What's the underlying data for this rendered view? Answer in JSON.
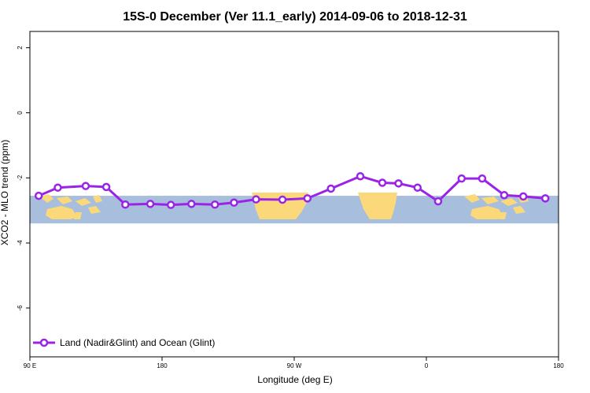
{
  "chart_data": {
    "type": "line",
    "title": "15S-0 December (Ver 11.1_early)   2014-09-06 to 2018-12-31",
    "xlabel": "Longitude (deg E)",
    "ylabel": "XCO2 - MLO trend (ppm)",
    "xlim": [
      90,
      450
    ],
    "ylim": [
      -7.5,
      2.5
    ],
    "x_ticks": [
      {
        "value": 90,
        "label": "90 E"
      },
      {
        "value": 180,
        "label": "180"
      },
      {
        "value": 270,
        "label": "90 W"
      },
      {
        "value": 360,
        "label": "0"
      },
      {
        "value": 450,
        "label": "180"
      }
    ],
    "y_ticks": [
      {
        "value": 2,
        "label": "2"
      },
      {
        "value": 0,
        "label": "0"
      },
      {
        "value": -2,
        "label": "-2"
      },
      {
        "value": -4,
        "label": "-4"
      },
      {
        "value": -6,
        "label": "-6"
      }
    ],
    "band": {
      "ymin": -3.4,
      "ymax": -2.55,
      "ocean_color": "#a8bedd",
      "land_color": "#fbd97a"
    },
    "series": [
      {
        "name": "Land (Nadir&Glint) and Ocean (Glint)",
        "color": "#9a24e6",
        "x": [
          96,
          109,
          128,
          142,
          155,
          172,
          186,
          200,
          216,
          229,
          244,
          262,
          279,
          295,
          315,
          330,
          341,
          354,
          368,
          384,
          398,
          413,
          426,
          441
        ],
        "values": [
          -2.55,
          -2.3,
          -2.25,
          -2.28,
          -2.82,
          -2.8,
          -2.83,
          -2.8,
          -2.82,
          -2.76,
          -2.66,
          -2.67,
          -2.63,
          -2.33,
          -1.95,
          -2.15,
          -2.17,
          -2.3,
          -2.72,
          -2.02,
          -2.02,
          -2.53,
          -2.57,
          -2.63
        ]
      }
    ],
    "legend_position": "bottom-left"
  }
}
